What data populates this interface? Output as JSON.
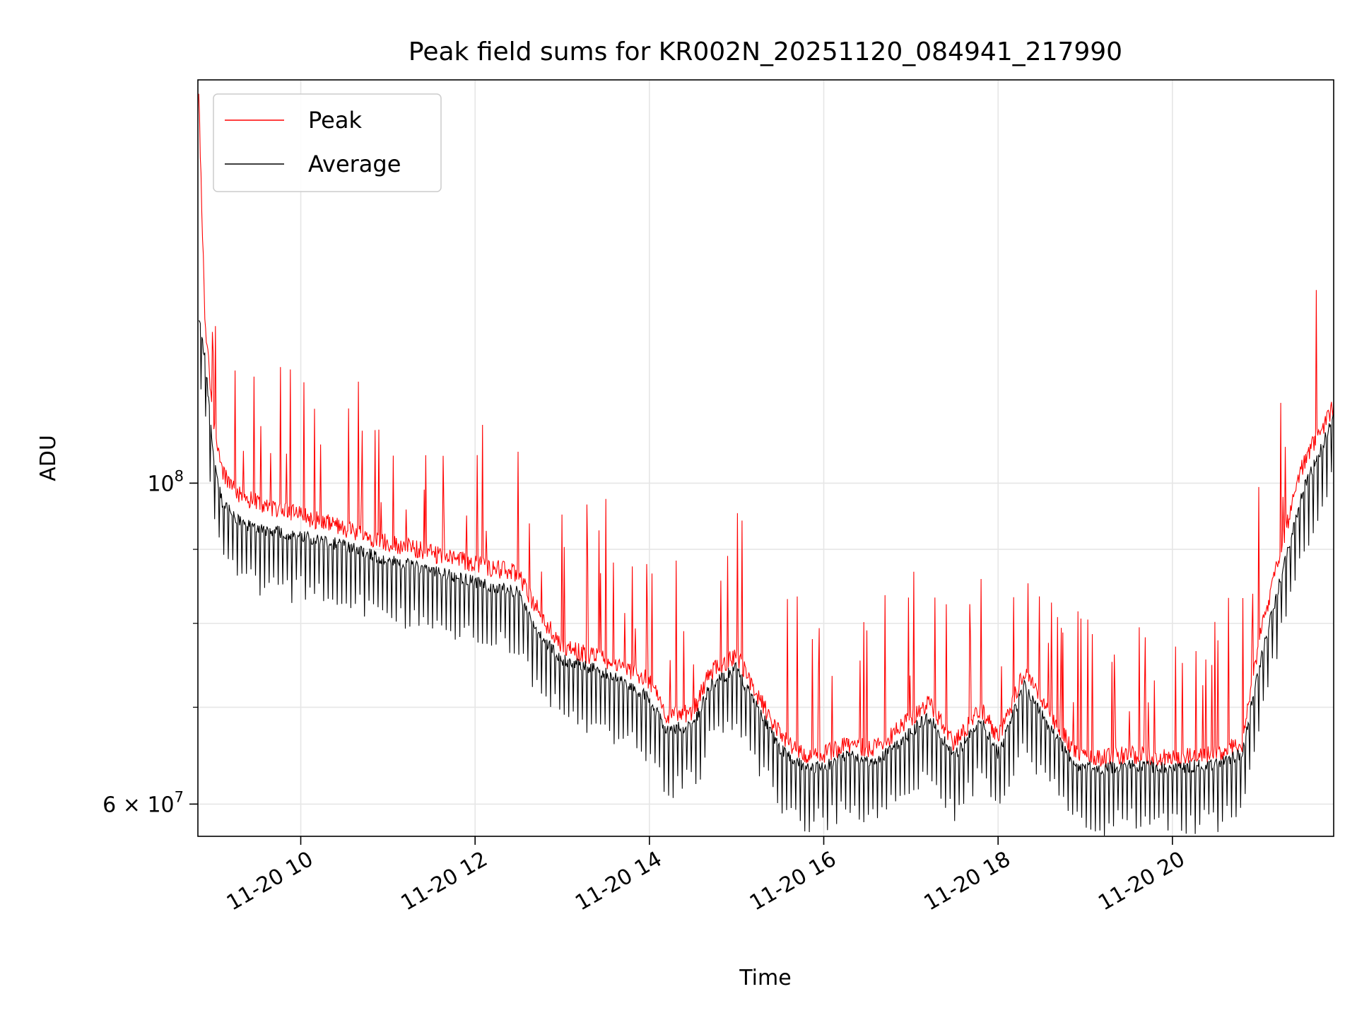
{
  "chart_data": {
    "type": "line",
    "title": "Peak field sums for KR002N_20251120_084941_217990",
    "xlabel": "Time",
    "ylabel": "ADU",
    "yscale": "log",
    "xlim_hours": [
      8.82,
      21.85
    ],
    "ylim": [
      57000000,
      190000000
    ],
    "x_ticks": [
      {
        "value": 10,
        "label": "11-20 10"
      },
      {
        "value": 12,
        "label": "11-20 12"
      },
      {
        "value": 14,
        "label": "11-20 14"
      },
      {
        "value": 16,
        "label": "11-20 16"
      },
      {
        "value": 18,
        "label": "11-20 18"
      },
      {
        "value": 20,
        "label": "11-20 20"
      }
    ],
    "y_major_ticks": [
      {
        "value": 100000000,
        "base": "10",
        "exp": "8"
      },
      {
        "value": 60000000,
        "mantissa": "6",
        "times": "×",
        "base": "10",
        "exp": "7"
      }
    ],
    "y_minor_ticks": [
      60000000,
      70000000,
      80000000,
      90000000,
      100000000
    ],
    "grid": true,
    "legend_position": "top-left",
    "series": [
      {
        "name": "Peak",
        "color": "#ff0000",
        "hours": [
          8.83,
          8.9,
          9.0,
          9.1,
          9.3,
          9.5,
          10.0,
          10.5,
          11.0,
          11.5,
          12.0,
          12.5,
          12.7,
          13.0,
          13.5,
          14.0,
          14.2,
          14.5,
          14.7,
          15.0,
          15.2,
          15.5,
          15.8,
          16.0,
          16.3,
          16.6,
          16.9,
          17.2,
          17.5,
          17.8,
          18.0,
          18.3,
          18.6,
          18.9,
          19.2,
          19.5,
          20.0,
          20.5,
          20.8,
          21.0,
          21.2,
          21.4,
          21.5,
          21.6,
          21.85
        ],
        "values": [
          185000000,
          130000000,
          110000000,
          102000000,
          98000000,
          97000000,
          95000000,
          93000000,
          91000000,
          89500000,
          88000000,
          86500000,
          82000000,
          77000000,
          75500000,
          73000000,
          69000000,
          69500000,
          74000000,
          76000000,
          72000000,
          67000000,
          64500000,
          65000000,
          66000000,
          65500000,
          68000000,
          70500000,
          66000000,
          70000000,
          66500000,
          74000000,
          69000000,
          65000000,
          64500000,
          65000000,
          64500000,
          65000000,
          66000000,
          78000000,
          88000000,
          98000000,
          103000000,
          106000000,
          113000000
        ]
      },
      {
        "name": "Average",
        "color": "#000000",
        "hours": [
          8.83,
          8.9,
          9.0,
          9.1,
          9.3,
          9.5,
          10.0,
          10.5,
          11.0,
          11.5,
          12.0,
          12.5,
          12.7,
          13.0,
          13.5,
          14.0,
          14.2,
          14.5,
          14.7,
          15.0,
          15.2,
          15.5,
          15.8,
          16.0,
          16.3,
          16.6,
          16.9,
          17.2,
          17.5,
          17.8,
          18.0,
          18.3,
          18.6,
          18.9,
          19.2,
          19.5,
          20.0,
          20.5,
          20.8,
          21.0,
          21.2,
          21.4,
          21.5,
          21.6,
          21.85
        ],
        "values": [
          130000000,
          122000000,
          104000000,
          97000000,
          94000000,
          93000000,
          92000000,
          90500000,
          88500000,
          87000000,
          85500000,
          84000000,
          79000000,
          75500000,
          74000000,
          71000000,
          67500000,
          68000000,
          72500000,
          74500000,
          70500000,
          65500000,
          63500000,
          63800000,
          64800000,
          64200000,
          66500000,
          69000000,
          64800000,
          68500000,
          65000000,
          72500000,
          67500000,
          63800000,
          63500000,
          63800000,
          63500000,
          64000000,
          65000000,
          75000000,
          84000000,
          94000000,
          99000000,
          102000000,
          111000000
        ]
      }
    ]
  }
}
